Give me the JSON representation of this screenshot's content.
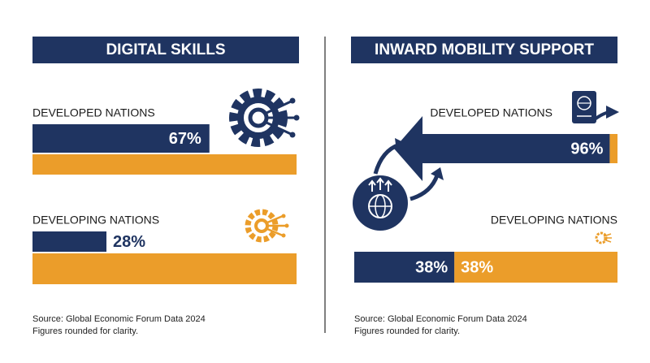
{
  "chart_data": [
    {
      "type": "bar",
      "title": "DIGITAL SKILLS",
      "categories": [
        "DEVELOPED NATIONS",
        "DEVELOPING NATIONS"
      ],
      "values": [
        67,
        28
      ],
      "value_labels": [
        "67%",
        "28%"
      ],
      "xlim": [
        0,
        100
      ],
      "color": "#1f3461",
      "track_color": "#eb9d2a",
      "source": "Source: Global Economic Forum Data 2024",
      "note": "Figures rounded for clarity."
    },
    {
      "type": "bar",
      "title": "INWARD MOBILITY SUPPORT",
      "categories": [
        "DEVELOPED NATIONS",
        "DEVELOPING NATIONS"
      ],
      "values": [
        96,
        38
      ],
      "value_labels": [
        "96%",
        "38%"
      ],
      "annotations": [
        "38%"
      ],
      "xlim": [
        0,
        100
      ],
      "color": "#1f3461",
      "track_color": "#eb9d2a",
      "source": "Source: Global Economic Forum Data 2024",
      "note": "Figures rounded for clarity."
    }
  ]
}
